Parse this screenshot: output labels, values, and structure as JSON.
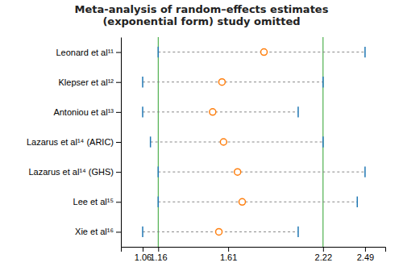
{
  "chart_data": {
    "type": "forest",
    "title": "Meta-analysis of random–effects estimates\n(exponential form) study omitted",
    "categories": [
      "Leonard et al¹¹",
      "Klepser et al¹²",
      "Antoniou et al¹³",
      "Lazarus et al¹⁴ (ARIC)",
      "Lazarus et al¹⁴ (GHS)",
      "Lee et al¹⁵",
      "Xie et al¹⁶"
    ],
    "values": [
      1.84,
      1.57,
      1.51,
      1.58,
      1.67,
      1.7,
      1.55
    ],
    "ci_low": [
      1.16,
      1.06,
      1.06,
      1.11,
      1.16,
      1.16,
      1.06
    ],
    "ci_high": [
      2.49,
      2.22,
      2.06,
      2.22,
      2.49,
      2.44,
      2.06
    ],
    "reference_lines": [
      1.16,
      2.22
    ],
    "xlim": [
      0.92,
      2.62
    ],
    "xticks": [
      1.06,
      1.16,
      1.61,
      2.22,
      2.49
    ],
    "grid": false
  }
}
